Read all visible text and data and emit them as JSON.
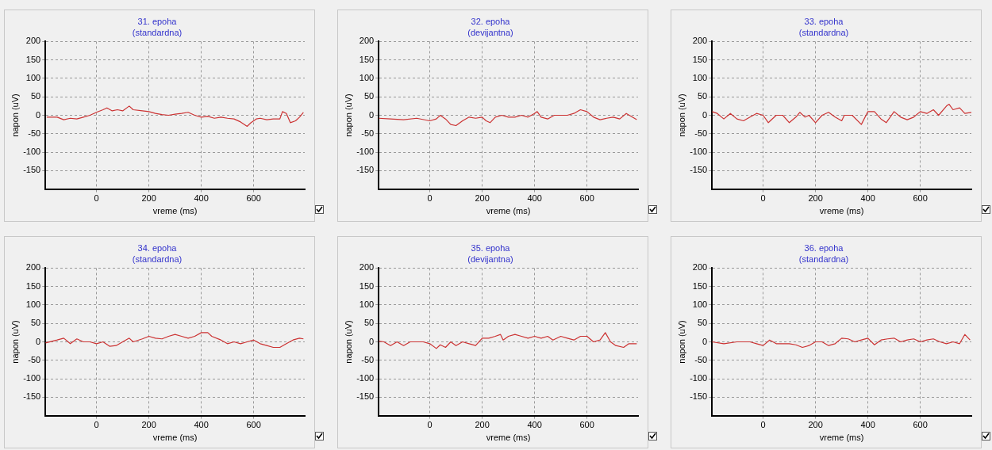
{
  "chart_data": [
    {
      "type": "line",
      "title": "31. epoha",
      "subtitle": "(standardna)",
      "xlabel": "vreme (ms)",
      "ylabel": "napon (uV)",
      "color": "#cc3333",
      "grid": true,
      "xlim": [
        -195,
        795
      ],
      "ylim": [
        -200,
        200
      ],
      "xticks": [
        0,
        200,
        400,
        600
      ],
      "yticks": [
        -150,
        -100,
        -50,
        0,
        50,
        100,
        150,
        200
      ],
      "x": [
        -190,
        -150,
        -125,
        -100,
        -75,
        -50,
        -25,
        0,
        25,
        40,
        60,
        80,
        100,
        125,
        140,
        175,
        200,
        225,
        250,
        275,
        300,
        325,
        350,
        375,
        400,
        425,
        450,
        475,
        500,
        525,
        550,
        575,
        590,
        610,
        625,
        650,
        675,
        700,
        710,
        725,
        740,
        760,
        775,
        790
      ],
      "values": [
        -5,
        -5,
        -12,
        -8,
        -10,
        -5,
        0,
        8,
        15,
        20,
        12,
        15,
        12,
        25,
        15,
        12,
        10,
        5,
        2,
        0,
        3,
        5,
        8,
        0,
        -5,
        -3,
        -8,
        -5,
        -8,
        -10,
        -18,
        -30,
        -20,
        -10,
        -8,
        -12,
        -10,
        -10,
        10,
        5,
        -20,
        -15,
        -5,
        8
      ]
    },
    {
      "type": "line",
      "title": "32. epoha",
      "subtitle": "(devijantna)",
      "xlabel": "vreme (ms)",
      "ylabel": "napon (uV)",
      "color": "#cc3333",
      "grid": true,
      "xlim": [
        -195,
        795
      ],
      "ylim": [
        -200,
        200
      ],
      "xticks": [
        0,
        200,
        400,
        600
      ],
      "yticks": [
        -150,
        -100,
        -50,
        0,
        50,
        100,
        150,
        200
      ],
      "x": [
        -195,
        -150,
        -100,
        -50,
        0,
        25,
        40,
        60,
        80,
        100,
        125,
        150,
        175,
        200,
        215,
        230,
        250,
        275,
        300,
        325,
        350,
        375,
        400,
        410,
        425,
        450,
        475,
        500,
        525,
        550,
        575,
        600,
        625,
        650,
        675,
        700,
        725,
        750,
        790
      ],
      "values": [
        -8,
        -10,
        -12,
        -8,
        -15,
        -10,
        0,
        -10,
        -25,
        -28,
        -15,
        -5,
        -8,
        -5,
        -15,
        -20,
        -5,
        0,
        -5,
        -5,
        0,
        -5,
        5,
        10,
        -5,
        -10,
        0,
        0,
        0,
        5,
        15,
        10,
        -5,
        -12,
        -8,
        -5,
        -10,
        5,
        -12
      ]
    },
    {
      "type": "line",
      "title": "33. epoha",
      "subtitle": "(standardna)",
      "xlabel": "vreme (ms)",
      "ylabel": "napon (uV)",
      "color": "#cc3333",
      "grid": true,
      "xlim": [
        -195,
        795
      ],
      "ylim": [
        -200,
        200
      ],
      "xticks": [
        0,
        200,
        400,
        600
      ],
      "yticks": [
        -150,
        -100,
        -50,
        0,
        50,
        100,
        150,
        200
      ],
      "x": [
        -195,
        -175,
        -150,
        -125,
        -100,
        -75,
        -50,
        -25,
        0,
        20,
        50,
        75,
        100,
        125,
        140,
        160,
        175,
        200,
        225,
        250,
        275,
        300,
        310,
        340,
        375,
        400,
        425,
        450,
        470,
        500,
        525,
        550,
        575,
        600,
        625,
        650,
        670,
        700,
        710,
        725,
        750,
        770,
        795
      ],
      "values": [
        10,
        5,
        -10,
        5,
        -10,
        -15,
        -5,
        5,
        0,
        -20,
        0,
        0,
        -20,
        -5,
        8,
        -5,
        0,
        -20,
        0,
        8,
        -5,
        -15,
        0,
        0,
        -25,
        10,
        10,
        -10,
        -20,
        10,
        -5,
        -12,
        -5,
        10,
        5,
        15,
        0,
        25,
        30,
        15,
        20,
        5,
        8
      ]
    },
    {
      "type": "line",
      "title": "34. epoha",
      "subtitle": "(standardna)",
      "xlabel": "vreme (ms)",
      "ylabel": "napon (uV)",
      "color": "#cc3333",
      "grid": true,
      "xlim": [
        -195,
        795
      ],
      "ylim": [
        -200,
        200
      ],
      "xticks": [
        0,
        200,
        400,
        600
      ],
      "yticks": [
        -150,
        -100,
        -50,
        0,
        50,
        100,
        150,
        200
      ],
      "x": [
        -195,
        -150,
        -125,
        -100,
        -75,
        -50,
        -25,
        0,
        25,
        50,
        75,
        100,
        125,
        140,
        175,
        200,
        225,
        250,
        275,
        300,
        325,
        350,
        375,
        400,
        425,
        440,
        475,
        500,
        525,
        550,
        575,
        600,
        625,
        650,
        675,
        700,
        725,
        750,
        775,
        790
      ],
      "values": [
        -3,
        5,
        10,
        -5,
        8,
        0,
        0,
        -5,
        0,
        -12,
        -10,
        0,
        10,
        0,
        8,
        15,
        10,
        8,
        15,
        20,
        15,
        10,
        15,
        25,
        25,
        15,
        5,
        -5,
        0,
        -5,
        0,
        5,
        -5,
        -10,
        -15,
        -15,
        -5,
        5,
        10,
        8
      ]
    },
    {
      "type": "line",
      "title": "35. epoha",
      "subtitle": "(devijantna)",
      "xlabel": "vreme (ms)",
      "ylabel": "napon (uV)",
      "color": "#cc3333",
      "grid": true,
      "xlim": [
        -195,
        795
      ],
      "ylim": [
        -200,
        200
      ],
      "xticks": [
        0,
        200,
        400,
        600
      ],
      "yticks": [
        -150,
        -100,
        -50,
        0,
        50,
        100,
        150,
        200
      ],
      "x": [
        -195,
        -175,
        -150,
        -125,
        -100,
        -75,
        -50,
        -25,
        0,
        25,
        40,
        60,
        80,
        100,
        125,
        150,
        175,
        200,
        225,
        250,
        270,
        280,
        300,
        325,
        350,
        375,
        400,
        425,
        450,
        470,
        500,
        525,
        550,
        575,
        600,
        625,
        650,
        670,
        690,
        710,
        740,
        760,
        790
      ],
      "values": [
        2,
        0,
        -10,
        0,
        -10,
        0,
        0,
        0,
        -5,
        -18,
        -8,
        -15,
        0,
        -10,
        0,
        -5,
        -10,
        10,
        10,
        15,
        20,
        5,
        15,
        20,
        15,
        10,
        15,
        10,
        15,
        5,
        15,
        10,
        5,
        15,
        15,
        0,
        5,
        25,
        0,
        -10,
        -15,
        -5,
        -5
      ]
    },
    {
      "type": "line",
      "title": "36. epoha",
      "subtitle": "(standardna)",
      "xlabel": "vreme (ms)",
      "ylabel": "napon (uV)",
      "color": "#cc3333",
      "grid": true,
      "xlim": [
        -195,
        795
      ],
      "ylim": [
        -200,
        200
      ],
      "xticks": [
        0,
        200,
        400,
        600
      ],
      "yticks": [
        -150,
        -100,
        -50,
        0,
        50,
        100,
        150,
        200
      ],
      "x": [
        -195,
        -150,
        -100,
        -50,
        -25,
        0,
        25,
        50,
        75,
        100,
        125,
        150,
        175,
        200,
        225,
        250,
        275,
        300,
        325,
        350,
        375,
        400,
        425,
        450,
        475,
        500,
        525,
        550,
        575,
        600,
        625,
        650,
        675,
        700,
        725,
        750,
        770,
        790
      ],
      "values": [
        0,
        -5,
        0,
        0,
        -5,
        -10,
        5,
        -5,
        -5,
        -5,
        -8,
        -15,
        -10,
        0,
        0,
        -10,
        -5,
        10,
        8,
        0,
        5,
        10,
        -8,
        5,
        8,
        10,
        0,
        5,
        8,
        0,
        5,
        8,
        0,
        -5,
        0,
        -5,
        20,
        5
      ]
    }
  ]
}
